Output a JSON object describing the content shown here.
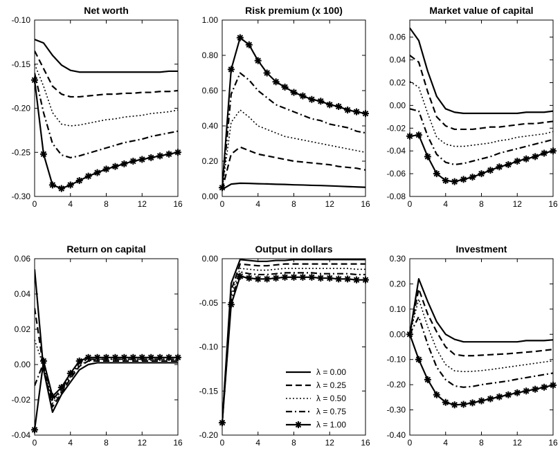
{
  "figure": {
    "legend_entries": [
      "λ = 0.00",
      "λ = 0.25",
      "λ = 0.50",
      "λ = 0.75",
      "λ = 1.00"
    ],
    "legend_panel": 4,
    "legend_position": "bottom-right",
    "series_styles": [
      {
        "dash": "solid",
        "marker": "none"
      },
      {
        "dash": "dashed",
        "marker": "none"
      },
      {
        "dash": "dotted",
        "marker": "none"
      },
      {
        "dash": "dash-dot",
        "marker": "none"
      },
      {
        "dash": "solid",
        "marker": "asterisk"
      }
    ],
    "line_color": "#000000"
  },
  "chart_data": [
    {
      "type": "line",
      "title": "Net worth",
      "x": [
        0,
        1,
        2,
        3,
        4,
        5,
        6,
        7,
        8,
        9,
        10,
        11,
        12,
        13,
        14,
        15,
        16
      ],
      "xticks": [
        "0",
        "4",
        "8",
        "12",
        "16"
      ],
      "yticks": [
        "-0.10",
        "-0.15",
        "-0.20",
        "-0.25",
        "-0.30"
      ],
      "ylim": [
        -0.3,
        -0.1
      ],
      "xlim": [
        0,
        16
      ],
      "grid": false,
      "series": [
        {
          "values": [
            -0.122,
            -0.126,
            -0.14,
            -0.151,
            -0.157,
            -0.159,
            -0.159,
            -0.159,
            -0.159,
            -0.159,
            -0.159,
            -0.159,
            -0.159,
            -0.159,
            -0.159,
            -0.158,
            -0.158
          ]
        },
        {
          "values": [
            -0.135,
            -0.155,
            -0.175,
            -0.184,
            -0.187,
            -0.187,
            -0.186,
            -0.185,
            -0.184,
            -0.184,
            -0.183,
            -0.183,
            -0.182,
            -0.182,
            -0.181,
            -0.181,
            -0.18
          ]
        },
        {
          "values": [
            -0.15,
            -0.175,
            -0.205,
            -0.218,
            -0.22,
            -0.219,
            -0.217,
            -0.215,
            -0.213,
            -0.212,
            -0.21,
            -0.209,
            -0.208,
            -0.206,
            -0.205,
            -0.204,
            -0.202
          ]
        },
        {
          "values": [
            -0.16,
            -0.205,
            -0.24,
            -0.253,
            -0.256,
            -0.254,
            -0.251,
            -0.248,
            -0.245,
            -0.242,
            -0.239,
            -0.237,
            -0.235,
            -0.232,
            -0.23,
            -0.228,
            -0.226
          ]
        },
        {
          "values": [
            -0.168,
            -0.252,
            -0.287,
            -0.291,
            -0.287,
            -0.282,
            -0.277,
            -0.273,
            -0.269,
            -0.266,
            -0.263,
            -0.26,
            -0.258,
            -0.256,
            -0.254,
            -0.252,
            -0.25
          ]
        }
      ]
    },
    {
      "type": "line",
      "title": "Risk premium (x 100)",
      "x": [
        0,
        1,
        2,
        3,
        4,
        5,
        6,
        7,
        8,
        9,
        10,
        11,
        12,
        13,
        14,
        15,
        16
      ],
      "xticks": [
        "0",
        "4",
        "8",
        "12",
        "16"
      ],
      "yticks": [
        "1.00",
        "0.80",
        "0.60",
        "0.40",
        "0.20",
        "0.00"
      ],
      "ylim": [
        0.0,
        1.0
      ],
      "xlim": [
        0,
        16
      ],
      "grid": false,
      "series": [
        {
          "values": [
            0.04,
            0.07,
            0.075,
            0.074,
            0.072,
            0.071,
            0.069,
            0.068,
            0.066,
            0.065,
            0.063,
            0.062,
            0.06,
            0.058,
            0.056,
            0.054,
            0.052
          ]
        },
        {
          "values": [
            0.04,
            0.24,
            0.28,
            0.26,
            0.24,
            0.23,
            0.22,
            0.21,
            0.2,
            0.195,
            0.19,
            0.185,
            0.18,
            0.17,
            0.165,
            0.16,
            0.15
          ]
        },
        {
          "values": [
            0.04,
            0.42,
            0.49,
            0.45,
            0.4,
            0.38,
            0.36,
            0.34,
            0.33,
            0.32,
            0.31,
            0.3,
            0.29,
            0.28,
            0.27,
            0.26,
            0.25
          ]
        },
        {
          "values": [
            0.04,
            0.58,
            0.7,
            0.66,
            0.6,
            0.56,
            0.52,
            0.5,
            0.48,
            0.46,
            0.44,
            0.43,
            0.41,
            0.4,
            0.39,
            0.37,
            0.36
          ]
        },
        {
          "values": [
            0.05,
            0.72,
            0.9,
            0.86,
            0.77,
            0.7,
            0.65,
            0.62,
            0.59,
            0.57,
            0.55,
            0.54,
            0.52,
            0.51,
            0.49,
            0.48,
            0.47
          ]
        }
      ]
    },
    {
      "type": "line",
      "title": "Market value of capital",
      "x": [
        0,
        1,
        2,
        3,
        4,
        5,
        6,
        7,
        8,
        9,
        10,
        11,
        12,
        13,
        14,
        15,
        16
      ],
      "xticks": [
        "0",
        "4",
        "8",
        "12",
        "16"
      ],
      "yticks": [
        "0.06",
        "0.04",
        "0.02",
        "0.00",
        "-0.02",
        "-0.04",
        "-0.06",
        "-0.08"
      ],
      "ylim": [
        -0.08,
        0.075
      ],
      "xlim": [
        0,
        16
      ],
      "grid": false,
      "series": [
        {
          "values": [
            0.068,
            0.057,
            0.03,
            0.008,
            -0.003,
            -0.006,
            -0.007,
            -0.007,
            -0.007,
            -0.007,
            -0.007,
            -0.007,
            -0.007,
            -0.006,
            -0.006,
            -0.006,
            -0.005
          ]
        },
        {
          "values": [
            0.044,
            0.038,
            0.012,
            -0.01,
            -0.018,
            -0.021,
            -0.021,
            -0.021,
            -0.02,
            -0.019,
            -0.019,
            -0.018,
            -0.017,
            -0.016,
            -0.016,
            -0.015,
            -0.014
          ]
        },
        {
          "values": [
            0.021,
            0.016,
            -0.007,
            -0.028,
            -0.034,
            -0.036,
            -0.036,
            -0.035,
            -0.034,
            -0.033,
            -0.031,
            -0.03,
            -0.028,
            -0.027,
            -0.026,
            -0.025,
            -0.023
          ]
        },
        {
          "values": [
            -0.003,
            -0.005,
            -0.027,
            -0.043,
            -0.05,
            -0.052,
            -0.051,
            -0.049,
            -0.047,
            -0.045,
            -0.042,
            -0.04,
            -0.038,
            -0.036,
            -0.034,
            -0.032,
            -0.03
          ]
        },
        {
          "values": [
            -0.027,
            -0.026,
            -0.045,
            -0.06,
            -0.066,
            -0.067,
            -0.065,
            -0.063,
            -0.06,
            -0.057,
            -0.054,
            -0.052,
            -0.049,
            -0.047,
            -0.045,
            -0.042,
            -0.04
          ]
        }
      ]
    },
    {
      "type": "line",
      "title": "Return on capital",
      "x": [
        0,
        1,
        2,
        3,
        4,
        5,
        6,
        7,
        8,
        9,
        10,
        11,
        12,
        13,
        14,
        15,
        16
      ],
      "xticks": [
        "0",
        "4",
        "8",
        "12",
        "16"
      ],
      "yticks": [
        "0.06",
        "0.04",
        "0.02",
        "0.00",
        "-0.02",
        "-0.04"
      ],
      "ylim": [
        -0.04,
        0.06
      ],
      "xlim": [
        0,
        16
      ],
      "grid": false,
      "series": [
        {
          "values": [
            0.054,
            -0.003,
            -0.027,
            -0.017,
            -0.01,
            -0.003,
            0.0,
            0.001,
            0.001,
            0.001,
            0.001,
            0.001,
            0.001,
            0.001,
            0.001,
            0.001,
            0.001
          ]
        },
        {
          "values": [
            0.032,
            -0.002,
            -0.024,
            -0.016,
            -0.008,
            -0.001,
            0.002,
            0.002,
            0.002,
            0.002,
            0.002,
            0.002,
            0.002,
            0.002,
            0.002,
            0.002,
            0.002
          ]
        },
        {
          "values": [
            0.014,
            -0.001,
            -0.022,
            -0.015,
            -0.007,
            0.0,
            0.002,
            0.003,
            0.003,
            0.003,
            0.003,
            0.003,
            0.003,
            0.003,
            0.003,
            0.003,
            0.003
          ]
        },
        {
          "values": [
            -0.012,
            0.001,
            -0.02,
            -0.014,
            -0.006,
            0.001,
            0.003,
            0.003,
            0.003,
            0.003,
            0.003,
            0.003,
            0.003,
            0.003,
            0.003,
            0.003,
            0.003
          ]
        },
        {
          "values": [
            -0.037,
            0.002,
            -0.018,
            -0.013,
            -0.005,
            0.002,
            0.004,
            0.004,
            0.004,
            0.004,
            0.004,
            0.004,
            0.004,
            0.004,
            0.004,
            0.004,
            0.004
          ]
        }
      ]
    },
    {
      "type": "line",
      "title": "Output in dollars",
      "x": [
        0,
        1,
        2,
        3,
        4,
        5,
        6,
        7,
        8,
        9,
        10,
        11,
        12,
        13,
        14,
        15,
        16
      ],
      "xticks": [
        "0",
        "4",
        "8",
        "12",
        "16"
      ],
      "yticks": [
        "0.00",
        "-0.05",
        "-0.10",
        "-0.15",
        "-0.20"
      ],
      "ylim": [
        -0.2,
        0.0
      ],
      "xlim": [
        0,
        16
      ],
      "grid": false,
      "series": [
        {
          "values": [
            -0.186,
            -0.028,
            -0.001,
            -0.002,
            -0.003,
            -0.003,
            -0.002,
            -0.002,
            -0.001,
            -0.001,
            -0.001,
            -0.001,
            -0.001,
            -0.001,
            -0.001,
            -0.001,
            -0.001
          ]
        },
        {
          "values": [
            -0.186,
            -0.036,
            -0.006,
            -0.007,
            -0.008,
            -0.008,
            -0.007,
            -0.006,
            -0.006,
            -0.006,
            -0.006,
            -0.006,
            -0.006,
            -0.006,
            -0.006,
            -0.006,
            -0.006
          ]
        },
        {
          "values": [
            -0.186,
            -0.042,
            -0.011,
            -0.012,
            -0.013,
            -0.013,
            -0.012,
            -0.011,
            -0.011,
            -0.011,
            -0.011,
            -0.011,
            -0.011,
            -0.011,
            -0.011,
            -0.012,
            -0.012
          ]
        },
        {
          "values": [
            -0.186,
            -0.048,
            -0.015,
            -0.017,
            -0.018,
            -0.018,
            -0.017,
            -0.016,
            -0.016,
            -0.016,
            -0.016,
            -0.017,
            -0.017,
            -0.017,
            -0.017,
            -0.018,
            -0.018
          ]
        },
        {
          "values": [
            -0.186,
            -0.052,
            -0.02,
            -0.022,
            -0.023,
            -0.023,
            -0.022,
            -0.021,
            -0.021,
            -0.021,
            -0.021,
            -0.022,
            -0.022,
            -0.023,
            -0.023,
            -0.024,
            -0.024
          ]
        }
      ]
    },
    {
      "type": "line",
      "title": "Investment",
      "x": [
        0,
        1,
        2,
        3,
        4,
        5,
        6,
        7,
        8,
        9,
        10,
        11,
        12,
        13,
        14,
        15,
        16
      ],
      "xticks": [
        "0",
        "4",
        "8",
        "12",
        "16"
      ],
      "yticks": [
        "0.30",
        "0.20",
        "0.10",
        "0.00",
        "-0.10",
        "-0.20",
        "-0.30",
        "-0.40"
      ],
      "ylim": [
        -0.4,
        0.3
      ],
      "xlim": [
        0,
        16
      ],
      "grid": false,
      "series": [
        {
          "values": [
            0.0,
            0.22,
            0.13,
            0.05,
            0.0,
            -0.02,
            -0.03,
            -0.03,
            -0.03,
            -0.03,
            -0.03,
            -0.03,
            -0.03,
            -0.025,
            -0.025,
            -0.025,
            -0.022
          ]
        },
        {
          "values": [
            0.0,
            0.18,
            0.08,
            0.01,
            -0.05,
            -0.08,
            -0.085,
            -0.085,
            -0.083,
            -0.081,
            -0.079,
            -0.077,
            -0.074,
            -0.071,
            -0.068,
            -0.064,
            -0.06
          ]
        },
        {
          "values": [
            0.0,
            0.14,
            0.03,
            -0.06,
            -0.12,
            -0.145,
            -0.148,
            -0.147,
            -0.144,
            -0.14,
            -0.135,
            -0.13,
            -0.125,
            -0.12,
            -0.115,
            -0.11,
            -0.105
          ]
        },
        {
          "values": [
            0.0,
            0.07,
            -0.04,
            -0.13,
            -0.18,
            -0.205,
            -0.21,
            -0.207,
            -0.2,
            -0.195,
            -0.19,
            -0.185,
            -0.178,
            -0.172,
            -0.166,
            -0.16,
            -0.154
          ]
        },
        {
          "values": [
            0.0,
            -0.1,
            -0.18,
            -0.24,
            -0.27,
            -0.28,
            -0.278,
            -0.272,
            -0.264,
            -0.256,
            -0.248,
            -0.24,
            -0.232,
            -0.225,
            -0.218,
            -0.21,
            -0.202
          ]
        }
      ]
    }
  ]
}
